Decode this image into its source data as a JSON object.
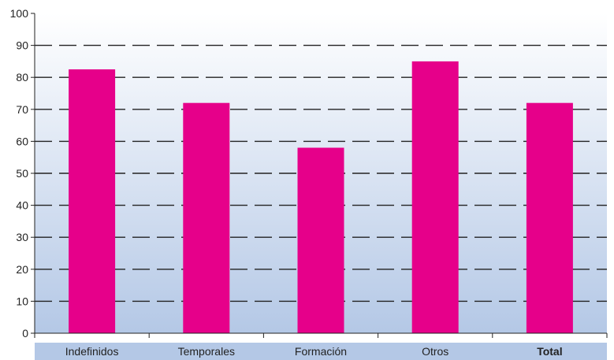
{
  "chart_data": {
    "type": "bar",
    "categories": [
      "Indefinidos",
      "Temporales",
      "Formación",
      "Otros",
      "Total"
    ],
    "values": [
      82.5,
      72,
      58,
      85,
      72
    ],
    "ylim": [
      0,
      100
    ],
    "yticks": [
      0,
      10,
      20,
      30,
      40,
      50,
      60,
      70,
      80,
      90,
      100
    ],
    "grid": "dashed horizontal",
    "bold_categories": [
      "Total"
    ],
    "colors": {
      "bar": "#e6008a",
      "plot_bg_top": "#ffffff",
      "plot_bg_bottom": "#b4c8e6",
      "category_band": "#b4c8e6",
      "grid": "#222222"
    }
  }
}
